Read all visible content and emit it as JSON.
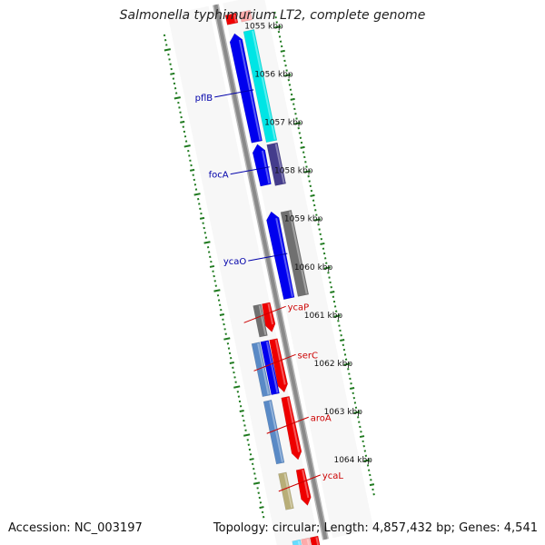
{
  "title": "Salmonella typhimurium LT2, complete genome",
  "footer": {
    "accession": "Accession: NC_003197",
    "summary": "Topology: circular; Length: 4,857,432 bp; Genes: 4,541"
  },
  "colors": {
    "backbone": "#8a8a8a",
    "tick": "#1f7a1f",
    "forward_label": "#0000aa",
    "reverse_label": "#cc0000"
  },
  "scale": {
    "unit": "kbp",
    "start_kbp": 1055,
    "end_kbp": 1064,
    "labels": [
      "1055 kbp",
      "1056 kbp",
      "1057 kbp",
      "1058 kbp",
      "1059 kbp",
      "1060 kbp",
      "1061 kbp",
      "1062 kbp",
      "1063 kbp",
      "1064 kbp"
    ]
  },
  "features": [
    {
      "strand": "+",
      "track": 2,
      "start_kbp": 1054.95,
      "end_kbp": 1057.25,
      "color": "#00e5e5",
      "arrow": false
    },
    {
      "strand": "+",
      "track": 1,
      "start_kbp": 1054.95,
      "end_kbp": 1057.2,
      "color": "#0000ee",
      "arrow": true
    },
    {
      "strand": "+",
      "track": 2,
      "start_kbp": 1057.3,
      "end_kbp": 1058.15,
      "color": "#443c8c",
      "arrow": false
    },
    {
      "strand": "+",
      "track": 1,
      "start_kbp": 1057.25,
      "end_kbp": 1058.1,
      "color": "#0000ee",
      "arrow": true
    },
    {
      "strand": "+",
      "track": 2,
      "start_kbp": 1058.7,
      "end_kbp": 1060.45,
      "color": "#707070",
      "arrow": false
    },
    {
      "strand": "+",
      "track": 1,
      "start_kbp": 1058.65,
      "end_kbp": 1060.45,
      "color": "#0000ee",
      "arrow": true
    },
    {
      "strand": "-",
      "track": 1,
      "start_kbp": 1060.45,
      "end_kbp": 1061.05,
      "color": "#ee0000",
      "arrow": true
    },
    {
      "strand": "-",
      "track": 2,
      "start_kbp": 1060.45,
      "end_kbp": 1061.1,
      "color": "#707070",
      "arrow": false
    },
    {
      "strand": "-",
      "track": 1,
      "start_kbp": 1061.2,
      "end_kbp": 1062.3,
      "color": "#ee0000",
      "arrow": true
    },
    {
      "strand": "-",
      "track": 2,
      "start_kbp": 1061.2,
      "end_kbp": 1062.3,
      "color": "#0000ee",
      "arrow": false
    },
    {
      "strand": "-",
      "track": 3,
      "start_kbp": 1061.2,
      "end_kbp": 1062.3,
      "color": "#5a8ac6",
      "arrow": false
    },
    {
      "strand": "-",
      "track": 1,
      "start_kbp": 1062.4,
      "end_kbp": 1063.7,
      "color": "#ee0000",
      "arrow": true
    },
    {
      "strand": "-",
      "track": 3,
      "start_kbp": 1062.4,
      "end_kbp": 1063.7,
      "color": "#5a8ac6",
      "arrow": false
    },
    {
      "strand": "-",
      "track": 1,
      "start_kbp": 1063.9,
      "end_kbp": 1064.65,
      "color": "#ee0000",
      "arrow": true
    },
    {
      "strand": "-",
      "track": 3,
      "start_kbp": 1063.9,
      "end_kbp": 1064.65,
      "color": "#b8ae78",
      "arrow": false
    },
    {
      "strand": "+",
      "track": 2,
      "start_kbp": 1054.55,
      "end_kbp": 1054.75,
      "color": "#ffaaaa",
      "arrow": false
    },
    {
      "strand": "+",
      "track": 1,
      "start_kbp": 1054.55,
      "end_kbp": 1054.75,
      "color": "#ee0000",
      "arrow": false
    },
    {
      "strand": "-",
      "track": 1,
      "start_kbp": 1065.3,
      "end_kbp": 1065.6,
      "color": "#ee0000",
      "arrow": false
    },
    {
      "strand": "-",
      "track": 2,
      "start_kbp": 1065.3,
      "end_kbp": 1065.6,
      "color": "#ffaaaa",
      "arrow": false
    },
    {
      "strand": "-",
      "track": 3,
      "start_kbp": 1065.3,
      "end_kbp": 1065.6,
      "color": "#66ddff",
      "arrow": false
    }
  ],
  "gene_labels": [
    {
      "name": "pflB",
      "strand": "+",
      "at_kbp": 1056.15
    },
    {
      "name": "focA",
      "strand": "+",
      "at_kbp": 1057.75
    },
    {
      "name": "ycaO",
      "strand": "+",
      "at_kbp": 1059.55
    },
    {
      "name": "ycaP",
      "strand": "-",
      "at_kbp": 1060.75
    },
    {
      "name": "serC",
      "strand": "-",
      "at_kbp": 1061.75
    },
    {
      "name": "aroA",
      "strand": "-",
      "at_kbp": 1063.05
    },
    {
      "name": "ycaL",
      "strand": "-",
      "at_kbp": 1064.25
    }
  ]
}
